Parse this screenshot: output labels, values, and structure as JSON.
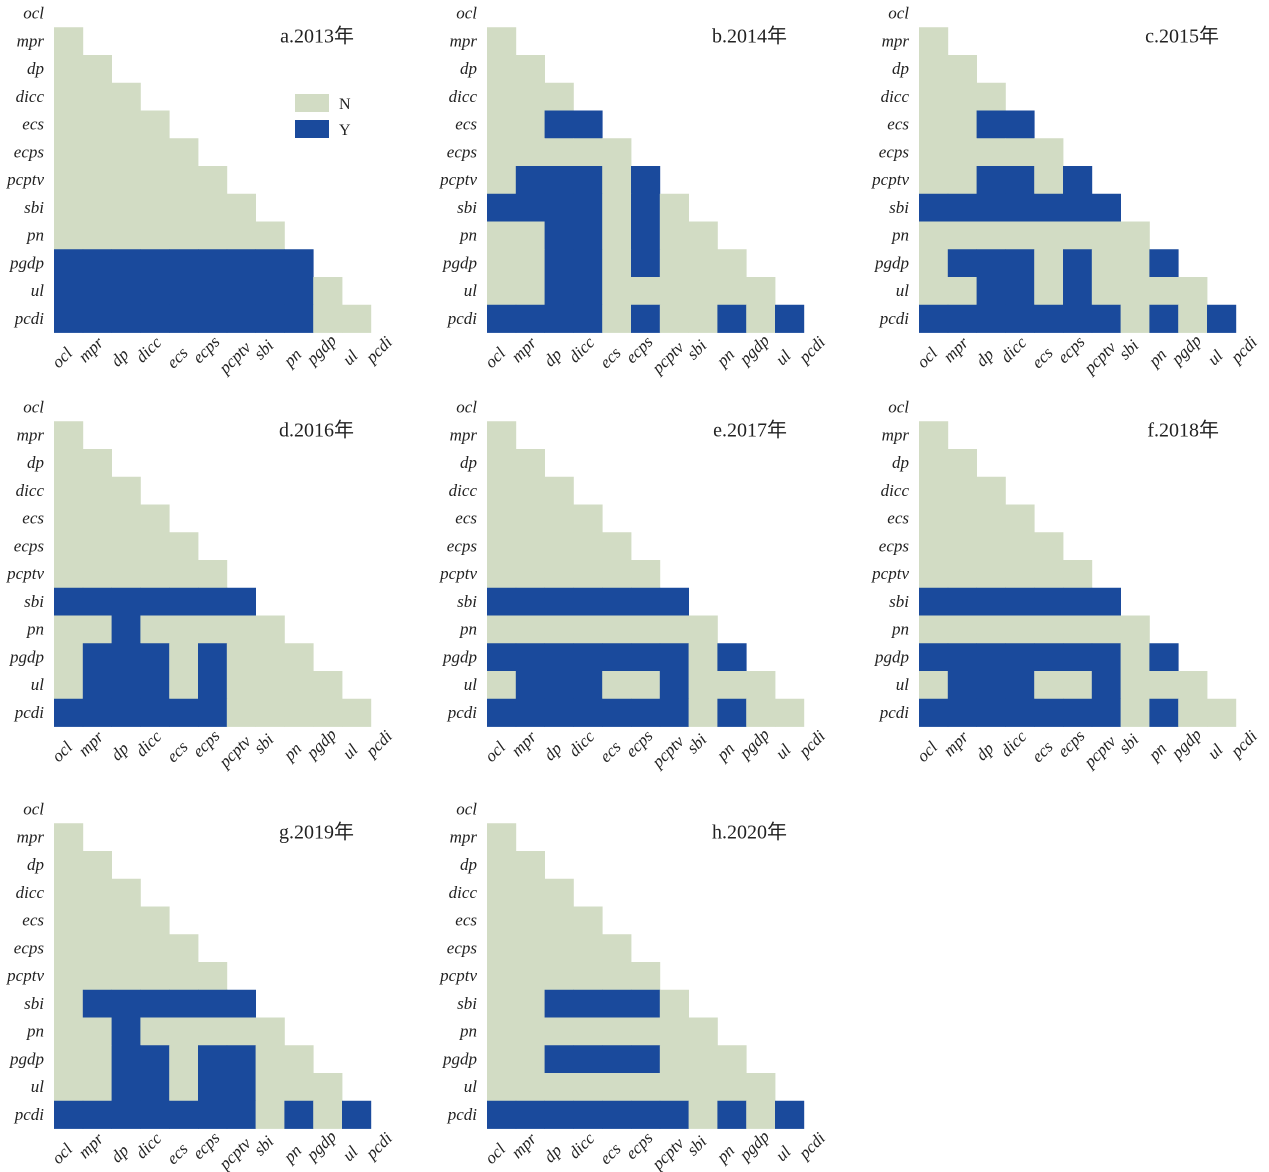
{
  "chart_data": {
    "type": "heatmap",
    "variables": [
      "ocl",
      "mpr",
      "dp",
      "dicc",
      "ecs",
      "ecps",
      "pcptv",
      "sbi",
      "pn",
      "pgdp",
      "ul",
      "pcdi"
    ],
    "legend": [
      {
        "label": "N",
        "color": "#d2dcc4"
      },
      {
        "label": "Y",
        "color": "#1a4a9c"
      }
    ],
    "legend_placement": "inside panel a, top-right",
    "encoding": "lower triangle; row i lists values for columns 0..i-1; N = no, Y = yes",
    "panels": [
      {
        "title": "a.2013年",
        "rows": [
          "",
          "N",
          "NN",
          "NNN",
          "NNNN",
          "NNNNN",
          "NNNNNN",
          "NNNNNNN",
          "NNNNNNNN",
          "YYYYYYYYY",
          "YYYYYYYYYN",
          "YYYYYYYYYNN"
        ]
      },
      {
        "title": "b.2014年",
        "rows": [
          "",
          "N",
          "NN",
          "NNN",
          "NNYY",
          "NNNNN",
          "NYYYNY",
          "YYYYNYN",
          "NNYYNYNN",
          "NNYYNYNNN",
          "NNYYNNNNNN",
          "YYYYNYNNYNY"
        ]
      },
      {
        "title": "c.2015年",
        "rows": [
          "",
          "N",
          "NN",
          "NNN",
          "NNYY",
          "NNNNN",
          "NNYYNY",
          "YYYYYYY",
          "NNNNNNNN",
          "NYYYNYNNY",
          "NNYYNYNNNN",
          "YYYYYYYNYNY"
        ]
      },
      {
        "title": "d.2016年",
        "rows": [
          "",
          "N",
          "NN",
          "NNN",
          "NNNN",
          "NNNNN",
          "NNNNNN",
          "YYYYYYY",
          "NNYNNNNN",
          "NYYYNYNNN",
          "NYYYNYNNNN",
          "YYYYYYNNNNN"
        ]
      },
      {
        "title": "e.2017年",
        "rows": [
          "",
          "N",
          "NN",
          "NNN",
          "NNNN",
          "NNNNN",
          "NNNNNN",
          "YYYYYYY",
          "NNNNNNNN",
          "YYYYYYYNY",
          "NYYYNNYNNN",
          "YYYYYYYNYNN"
        ]
      },
      {
        "title": "f.2018年",
        "rows": [
          "",
          "N",
          "NN",
          "NNN",
          "NNNN",
          "NNNNN",
          "NNNNNN",
          "YYYYYYY",
          "NNNNNNNN",
          "YYYYYYYNY",
          "NYYYNNYNNN",
          "YYYYYYYNYNN"
        ]
      },
      {
        "title": "g.2019年",
        "rows": [
          "",
          "N",
          "NN",
          "NNN",
          "NNNN",
          "NNNNN",
          "NNNNNN",
          "NYYYYYY",
          "NNYNNNNN",
          "NNYYNYYNN",
          "NNYYNYYNNN",
          "YYYYYYYNYNY"
        ]
      },
      {
        "title": "h.2020年",
        "rows": [
          "",
          "N",
          "NN",
          "NNN",
          "NNNN",
          "NNNNN",
          "NNNNNN",
          "NNYYYYN",
          "NNNNNNNN",
          "NNYYYYNNN",
          "NNNNNNNNNN",
          "YYYYYYYNYNY"
        ]
      }
    ]
  }
}
